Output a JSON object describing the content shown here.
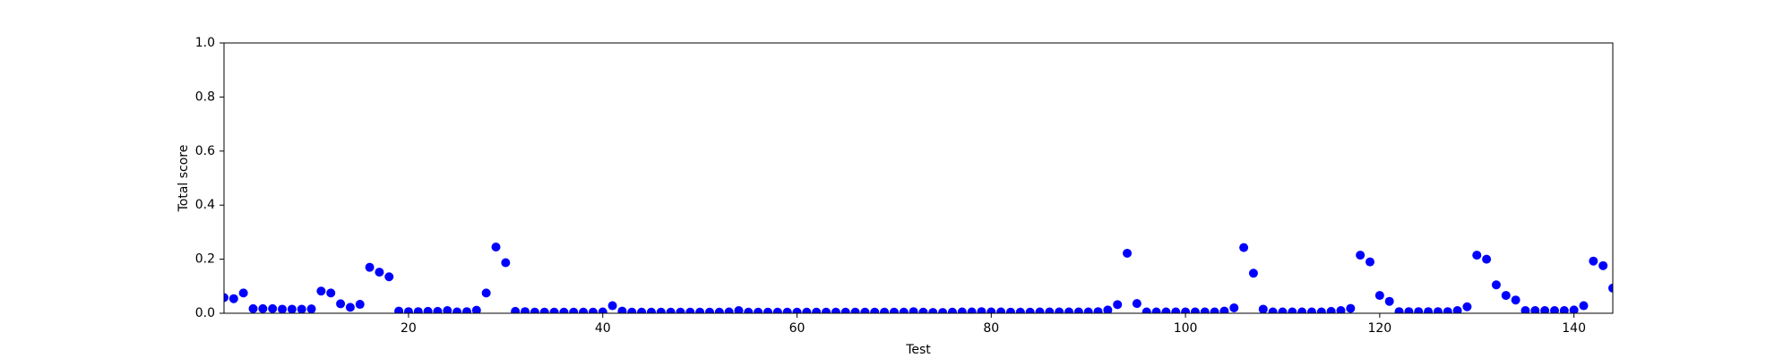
{
  "chart_data": {
    "type": "scatter",
    "x_label": "Test",
    "y_label": "Total score",
    "x": [
      1,
      2,
      3,
      4,
      5,
      6,
      7,
      8,
      9,
      10,
      11,
      12,
      13,
      14,
      15,
      16,
      17,
      18,
      19,
      20,
      21,
      22,
      23,
      24,
      25,
      26,
      27,
      28,
      29,
      30,
      31,
      32,
      33,
      34,
      35,
      36,
      37,
      38,
      39,
      40,
      41,
      42,
      43,
      44,
      45,
      46,
      47,
      48,
      49,
      50,
      51,
      52,
      53,
      54,
      55,
      56,
      57,
      58,
      59,
      60,
      61,
      62,
      63,
      64,
      65,
      66,
      67,
      68,
      69,
      70,
      71,
      72,
      73,
      74,
      75,
      76,
      77,
      78,
      79,
      80,
      81,
      82,
      83,
      84,
      85,
      86,
      87,
      88,
      89,
      90,
      91,
      92,
      93,
      94,
      95,
      96,
      97,
      98,
      99,
      100,
      101,
      102,
      103,
      104,
      105,
      106,
      107,
      108,
      109,
      110,
      111,
      112,
      113,
      114,
      115,
      116,
      117,
      118,
      119,
      120,
      121,
      122,
      123,
      124,
      125,
      126,
      127,
      128,
      129,
      130,
      131,
      132,
      133,
      134,
      135,
      136,
      137,
      138,
      139,
      140,
      141,
      142,
      143,
      144
    ],
    "series": [
      {
        "name": "Total score",
        "color": "blue",
        "values": [
          0.058,
          0.054,
          0.075,
          0.017,
          0.017,
          0.017,
          0.015,
          0.015,
          0.015,
          0.016,
          0.082,
          0.075,
          0.035,
          0.022,
          0.033,
          0.17,
          0.152,
          0.135,
          0.008,
          0.006,
          0.006,
          0.007,
          0.007,
          0.01,
          0.005,
          0.006,
          0.011,
          0.075,
          0.245,
          0.187,
          0.007,
          0.006,
          0.004,
          0.004,
          0.004,
          0.004,
          0.004,
          0.004,
          0.004,
          0.005,
          0.028,
          0.008,
          0.004,
          0.004,
          0.004,
          0.004,
          0.004,
          0.004,
          0.004,
          0.004,
          0.004,
          0.004,
          0.005,
          0.01,
          0.004,
          0.004,
          0.004,
          0.004,
          0.004,
          0.004,
          0.004,
          0.004,
          0.004,
          0.004,
          0.004,
          0.004,
          0.004,
          0.004,
          0.004,
          0.004,
          0.004,
          0.006,
          0.004,
          0.003,
          0.003,
          0.004,
          0.005,
          0.005,
          0.006,
          0.005,
          0.005,
          0.004,
          0.004,
          0.004,
          0.005,
          0.005,
          0.005,
          0.005,
          0.005,
          0.005,
          0.006,
          0.012,
          0.032,
          0.222,
          0.036,
          0.005,
          0.005,
          0.005,
          0.005,
          0.005,
          0.005,
          0.005,
          0.005,
          0.008,
          0.02,
          0.243,
          0.148,
          0.015,
          0.005,
          0.005,
          0.005,
          0.005,
          0.005,
          0.005,
          0.007,
          0.01,
          0.018,
          0.215,
          0.19,
          0.066,
          0.044,
          0.006,
          0.006,
          0.006,
          0.006,
          0.006,
          0.006,
          0.01,
          0.024,
          0.215,
          0.2,
          0.105,
          0.066,
          0.049,
          0.01,
          0.01,
          0.01,
          0.01,
          0.01,
          0.012,
          0.028,
          0.193,
          0.176,
          0.093
        ]
      }
    ],
    "xlim": [
      1,
      144
    ],
    "ylim": [
      0,
      1
    ],
    "xticks": [
      20,
      40,
      60,
      80,
      100,
      120,
      140
    ],
    "yticks": [
      {
        "value": 0,
        "label": "0.0"
      },
      {
        "value": 0.2,
        "label": "0.2"
      },
      {
        "value": 0.4,
        "label": "0.4"
      },
      {
        "value": 0.6,
        "label": "0.6"
      },
      {
        "value": 0.8,
        "label": "0.8"
      },
      {
        "value": 1,
        "label": "1.0"
      }
    ],
    "grid": false
  }
}
